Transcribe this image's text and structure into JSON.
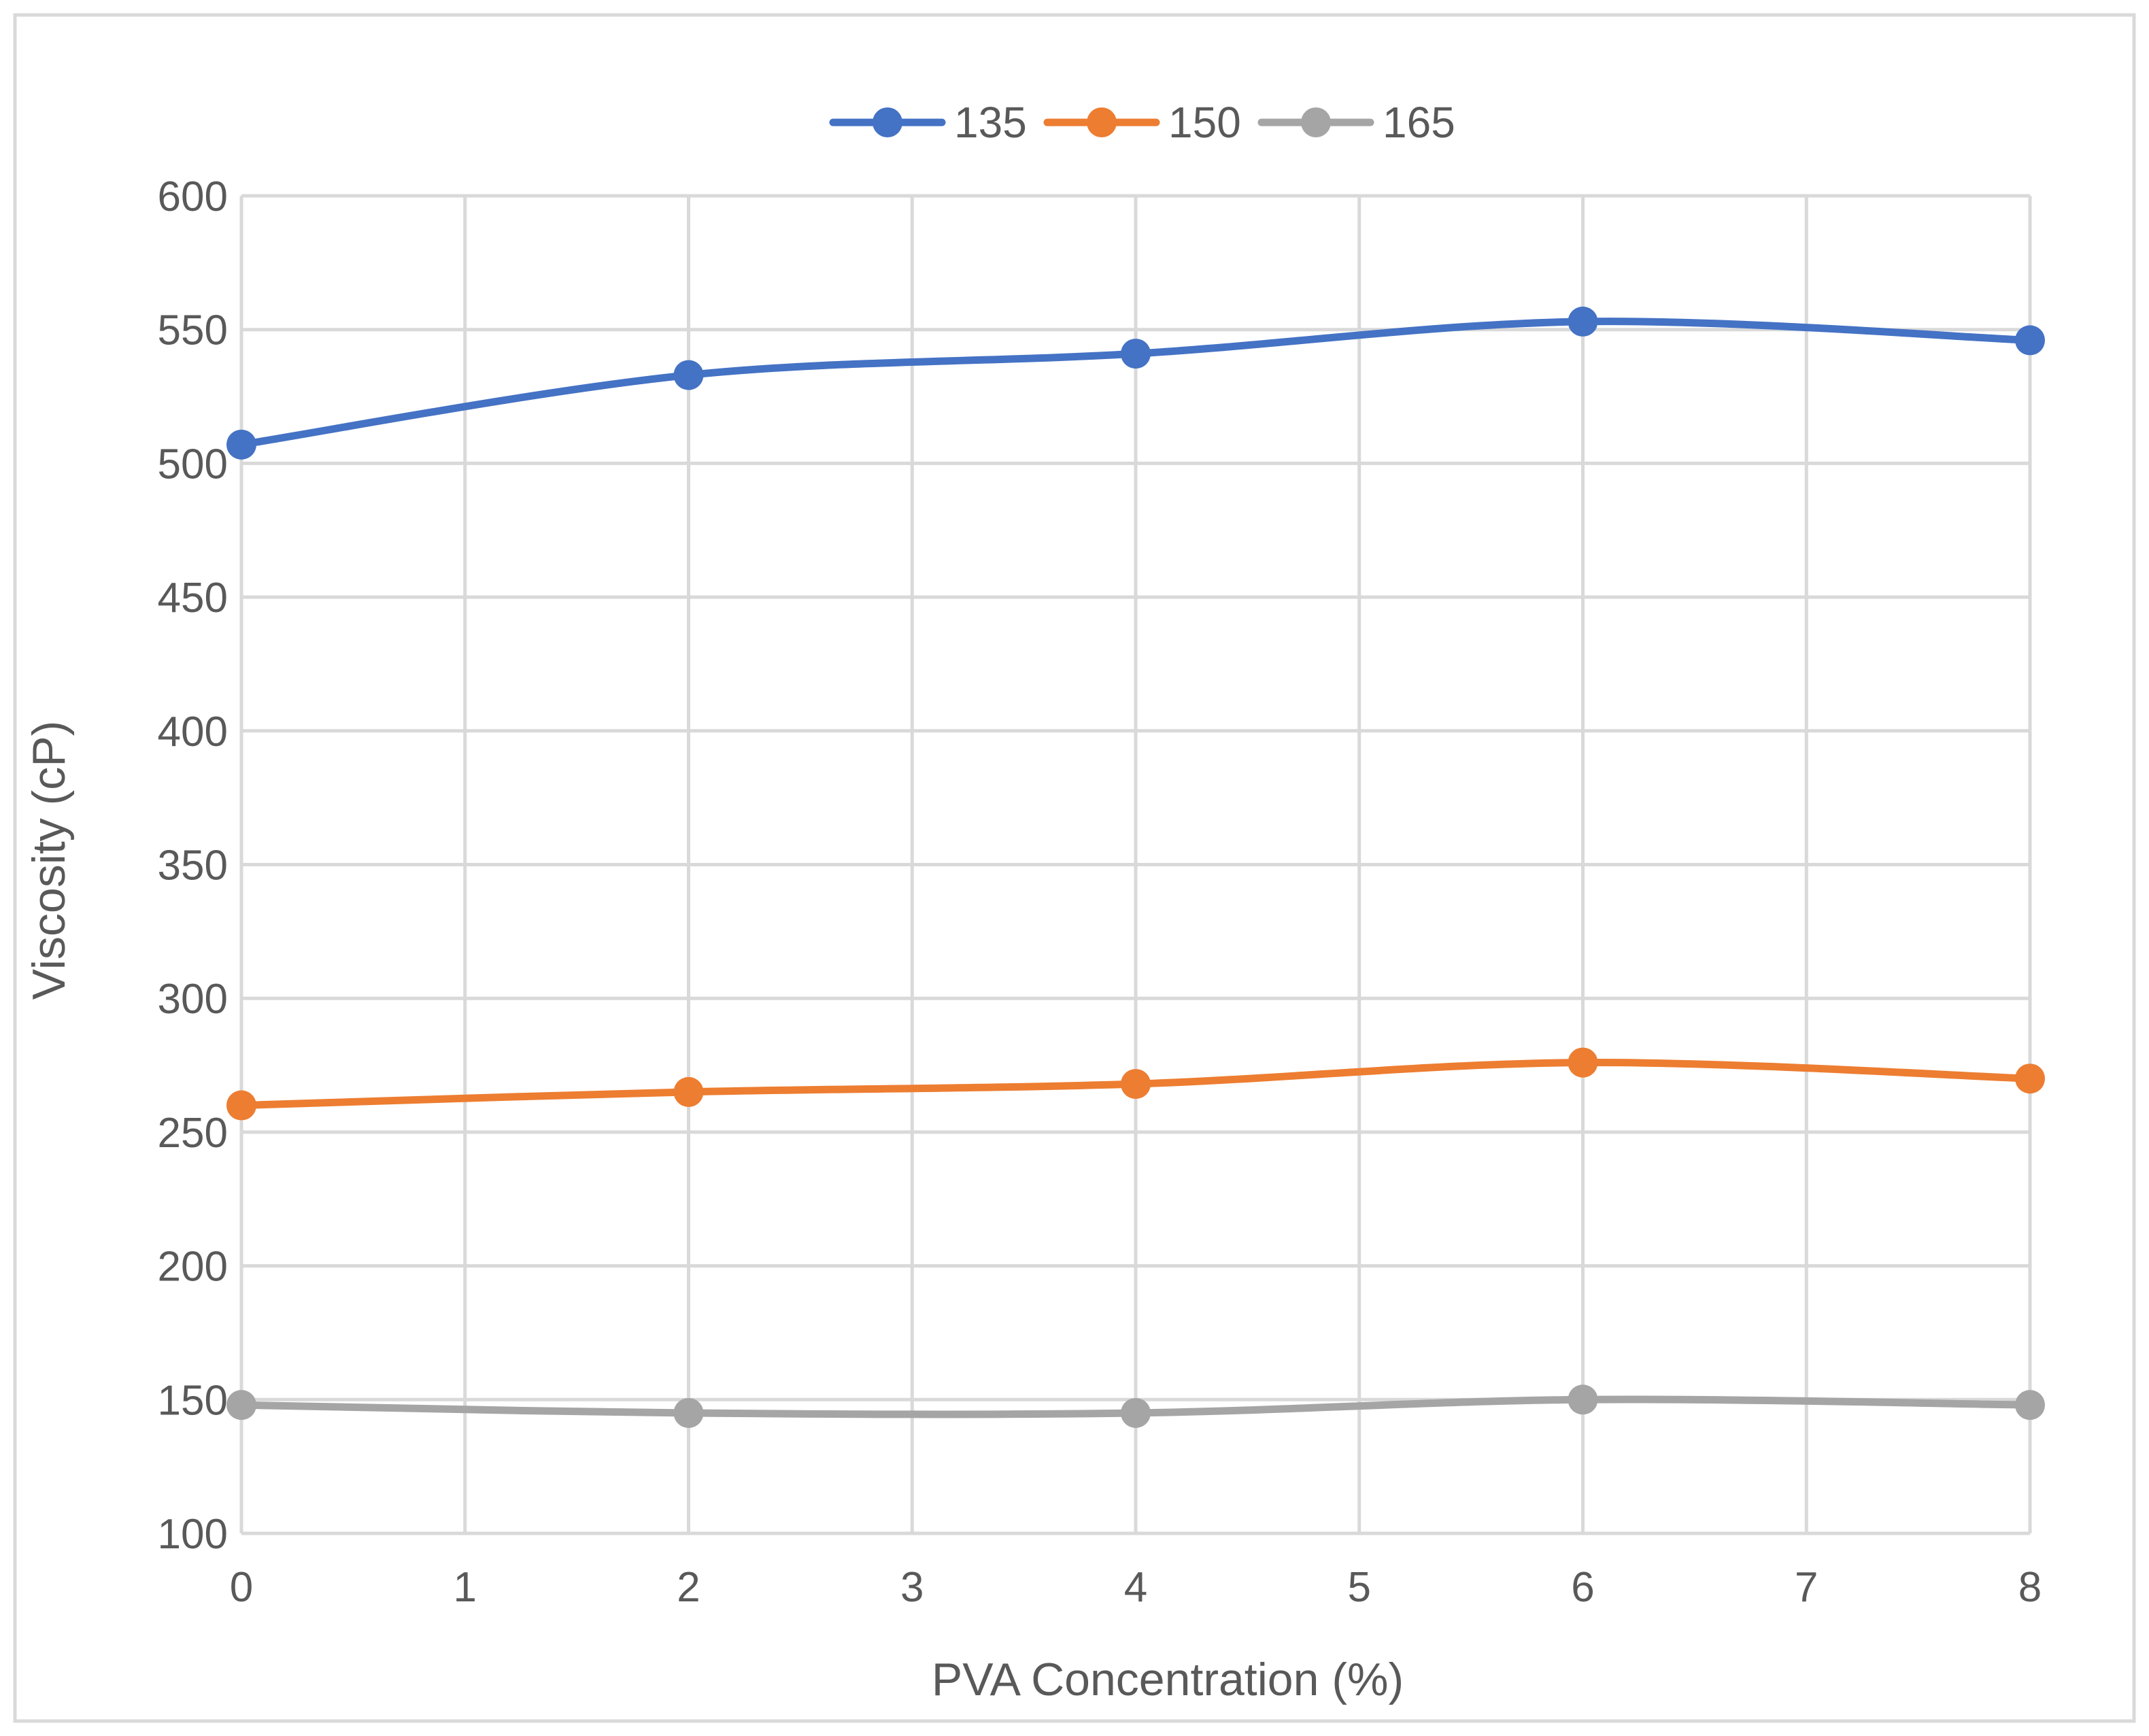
{
  "chart_data": {
    "type": "line",
    "title": "",
    "xlabel": "PVA Concentration (%)",
    "ylabel": "Viscosity  (cP)",
    "xlim": [
      0,
      8
    ],
    "ylim": [
      100,
      600
    ],
    "xticks": [
      0,
      1,
      2,
      3,
      4,
      5,
      6,
      7,
      8
    ],
    "yticks": [
      100,
      150,
      200,
      250,
      300,
      350,
      400,
      450,
      500,
      550,
      600
    ],
    "grid": true,
    "legend_position": "top-center",
    "smooth": true,
    "series": [
      {
        "name": "135",
        "color": "#4472c4",
        "x": [
          0,
          2,
          4,
          6,
          8
        ],
        "y": [
          507,
          533,
          541,
          553,
          546
        ]
      },
      {
        "name": "150",
        "color": "#ed7d31",
        "x": [
          0,
          2,
          4,
          6,
          8
        ],
        "y": [
          260,
          265,
          268,
          276,
          270
        ]
      },
      {
        "name": "165",
        "color": "#a5a5a5",
        "x": [
          0,
          2,
          4,
          6,
          8
        ],
        "y": [
          148,
          145,
          145,
          150,
          148
        ]
      }
    ]
  }
}
